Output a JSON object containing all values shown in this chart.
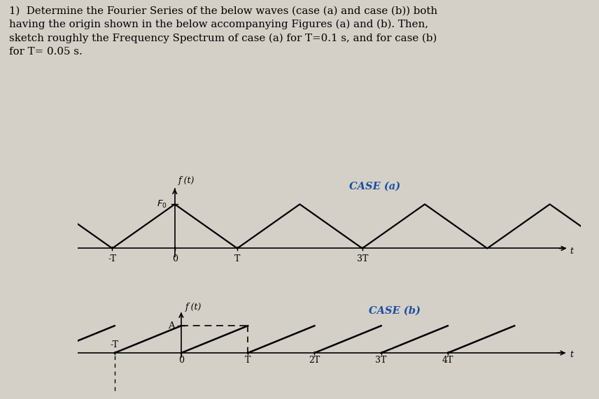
{
  "background_color": "#d4d0c8",
  "case_a_label": "CASE (a)",
  "case_b_label": "CASE (b)",
  "f_label_a": "f (t)",
  "f_label_b": "f (t)",
  "F0_label": "F_0",
  "A_label": "A",
  "t_label": "t",
  "label_color": "#1a4fa0",
  "line_color": "#000000",
  "title_line1": "1)  Determine the Fourier Series of the below waves (case (a) and case (b)) both",
  "title_line2": "having the origin shown in the below accompanying Figures (a) and (b). Then,",
  "title_line3": "sketch roughly the Frequency Spectrum of case (a) for T=0.1 s, and for case (b)",
  "title_line4": "for T= 0.05 s."
}
